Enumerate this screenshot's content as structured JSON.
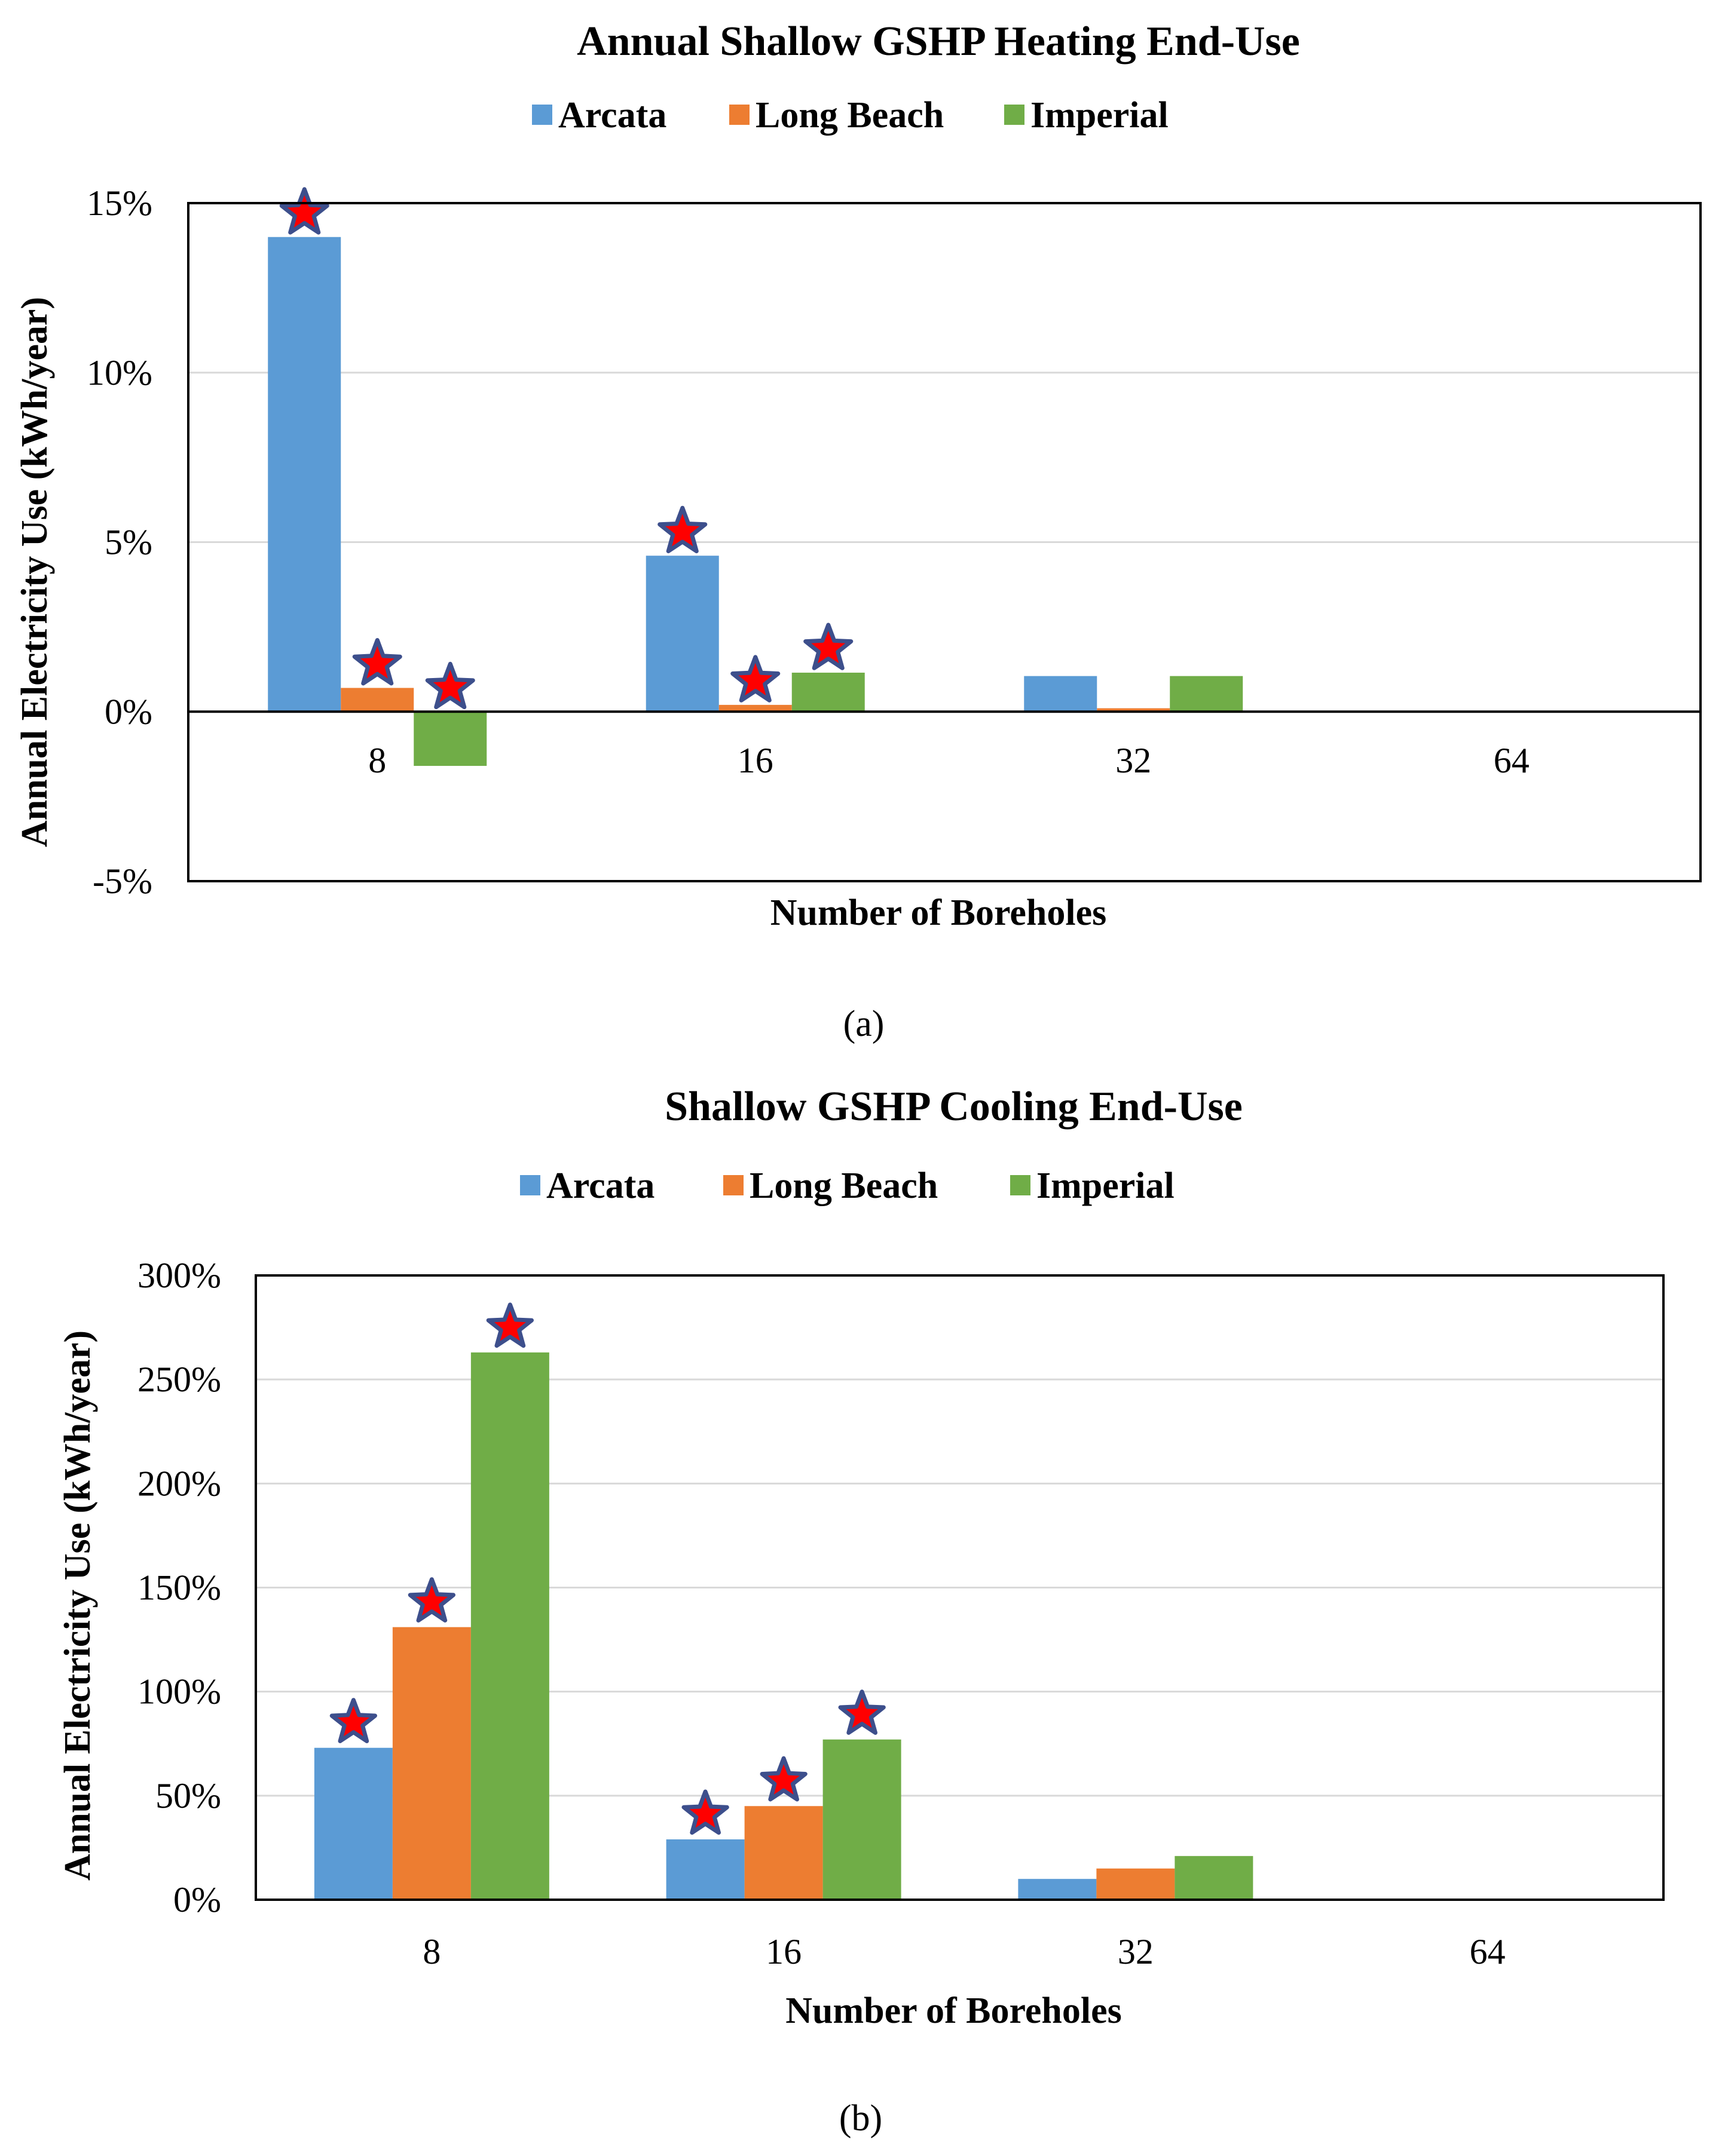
{
  "figure": {
    "captions": [
      "(a)",
      "(b)"
    ],
    "legend_colors": {
      "Arcata": "#5b9bd5",
      "Long Beach": "#ed7d31",
      "Imperial": "#70ad47"
    },
    "marker": {
      "name": "star-icon",
      "fill": "#ff0000",
      "stroke": "#3d4f8c"
    }
  },
  "chart_data": [
    {
      "type": "bar",
      "title": "Annual Shallow GSHP Heating End-Use",
      "xlabel": "Number of Boreholes",
      "ylabel": "Annual Electricity Use (kWh/year)",
      "categories": [
        "8",
        "16",
        "32",
        "64"
      ],
      "ylim": [
        -5,
        15
      ],
      "yticks": [
        15,
        10,
        5,
        0,
        -5
      ],
      "ytick_labels": [
        "15%",
        "10%",
        "5%",
        "0%",
        "-5%"
      ],
      "legend_position": "top",
      "grid": true,
      "series": [
        {
          "name": "Arcata",
          "color": "#5b9bd5",
          "values": [
            14.0,
            4.6,
            1.05,
            0
          ],
          "starred": [
            true,
            true,
            false,
            false
          ]
        },
        {
          "name": "Long Beach",
          "color": "#ed7d31",
          "values": [
            0.7,
            0.2,
            0.1,
            0
          ],
          "starred": [
            true,
            true,
            false,
            false
          ]
        },
        {
          "name": "Imperial",
          "color": "#70ad47",
          "values": [
            -1.6,
            1.15,
            1.05,
            0
          ],
          "starred": [
            true,
            true,
            false,
            false
          ]
        }
      ]
    },
    {
      "type": "bar",
      "title": "Shallow GSHP Cooling End-Use",
      "xlabel": "Number of Boreholes",
      "ylabel": "Annual Electricity Use (kWh/year)",
      "categories": [
        "8",
        "16",
        "32",
        "64"
      ],
      "ylim": [
        0,
        300
      ],
      "yticks": [
        300,
        250,
        200,
        150,
        100,
        50,
        0
      ],
      "ytick_labels": [
        "300%",
        "250%",
        "200%",
        "150%",
        "100%",
        "50%",
        "0%"
      ],
      "legend_position": "top",
      "grid": true,
      "series": [
        {
          "name": "Arcata",
          "color": "#5b9bd5",
          "values": [
            73,
            29,
            10,
            0
          ],
          "starred": [
            true,
            true,
            false,
            false
          ]
        },
        {
          "name": "Long Beach",
          "color": "#ed7d31",
          "values": [
            131,
            45,
            15,
            0
          ],
          "starred": [
            true,
            true,
            false,
            false
          ]
        },
        {
          "name": "Imperial",
          "color": "#70ad47",
          "values": [
            263,
            77,
            21,
            0
          ],
          "starred": [
            true,
            true,
            false,
            false
          ]
        }
      ]
    }
  ]
}
